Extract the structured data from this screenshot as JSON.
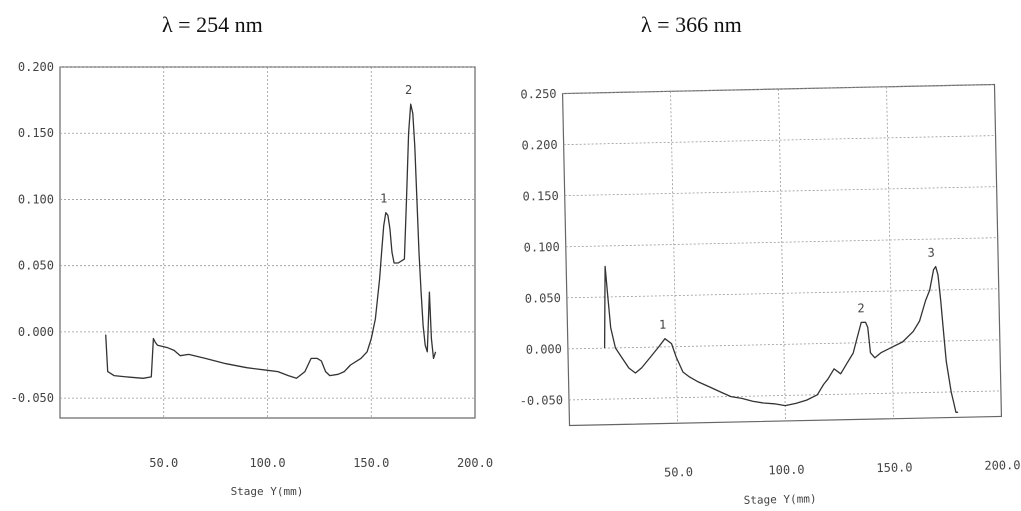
{
  "chart_data": [
    {
      "type": "line",
      "title": "λ = 254 nm",
      "xlabel": "Stage Y(mm)",
      "ylabel": "",
      "xlim": [
        0,
        200
      ],
      "ylim": [
        -0.065,
        0.2
      ],
      "xticks": [
        50,
        100,
        150,
        200
      ],
      "xtick_labels": [
        "50.0",
        "100.0",
        "150.0",
        "200.0"
      ],
      "yticks": [
        0.2,
        0.15,
        0.1,
        0.05,
        0.0,
        -0.05
      ],
      "ytick_labels": [
        "0.200",
        "0.150",
        "0.100",
        "0.050",
        "0.000",
        "-0.050"
      ],
      "grid": true,
      "peaks": [
        {
          "label": "1",
          "x": 157,
          "y": 0.09
        },
        {
          "label": "2",
          "x": 169,
          "y": 0.172
        }
      ],
      "series": [
        {
          "x": [
            22,
            23,
            26,
            32,
            40,
            44,
            45,
            46,
            47,
            52,
            55,
            58,
            62,
            70,
            80,
            90,
            100,
            105,
            110,
            114,
            118,
            121,
            124,
            126,
            128,
            130,
            134,
            137,
            140,
            145,
            148,
            150,
            152,
            154,
            155,
            156,
            157,
            158,
            159,
            160,
            161,
            163,
            166,
            167,
            168,
            169,
            170,
            171,
            172,
            173,
            174,
            175,
            176,
            177,
            178,
            179,
            180,
            181
          ],
          "y": [
            -0.002,
            -0.03,
            -0.033,
            -0.034,
            -0.035,
            -0.034,
            -0.005,
            -0.008,
            -0.01,
            -0.012,
            -0.014,
            -0.018,
            -0.017,
            -0.02,
            -0.024,
            -0.027,
            -0.029,
            -0.03,
            -0.033,
            -0.035,
            -0.03,
            -0.02,
            -0.02,
            -0.022,
            -0.03,
            -0.033,
            -0.032,
            -0.03,
            -0.025,
            -0.02,
            -0.015,
            -0.005,
            0.01,
            0.04,
            0.06,
            0.08,
            0.09,
            0.088,
            0.078,
            0.06,
            0.052,
            0.052,
            0.055,
            0.1,
            0.15,
            0.172,
            0.165,
            0.14,
            0.1,
            0.06,
            0.03,
            0.005,
            -0.01,
            -0.015,
            0.03,
            -0.005,
            -0.02,
            -0.015
          ]
        }
      ]
    },
    {
      "type": "line",
      "title": "λ = 366 nm",
      "xlabel": "Stage Y(mm)",
      "ylabel": "",
      "xlim": [
        0,
        200
      ],
      "ylim": [
        -0.075,
        0.25
      ],
      "xticks": [
        50,
        100,
        150,
        200
      ],
      "xtick_labels": [
        "50.0",
        "100.0",
        "150.0",
        "200.0"
      ],
      "yticks": [
        0.25,
        0.2,
        0.15,
        0.1,
        0.05,
        0.0,
        -0.05
      ],
      "ytick_labels": [
        "0.250",
        "0.200",
        "0.150",
        "0.100",
        "0.050",
        "0.000",
        "-0.050"
      ],
      "grid": true,
      "peaks": [
        {
          "label": "1",
          "x": 45,
          "y": 0.008
        },
        {
          "label": "2",
          "x": 137,
          "y": 0.02
        },
        {
          "label": "3",
          "x": 170,
          "y": 0.073
        }
      ],
      "series": [
        {
          "x": [
            17,
            18,
            19,
            20,
            22,
            25,
            28,
            31,
            34,
            38,
            42,
            45,
            48,
            50,
            53,
            56,
            60,
            65,
            70,
            75,
            80,
            85,
            90,
            95,
            100,
            105,
            110,
            115,
            118,
            120,
            123,
            126,
            129,
            132,
            134,
            136,
            138,
            139,
            140,
            142,
            145,
            150,
            155,
            160,
            163,
            166,
            168,
            170,
            171,
            172,
            173,
            174,
            175,
            177,
            178,
            179,
            180
          ],
          "y": [
            0.0,
            0.08,
            0.05,
            0.02,
            0.0,
            -0.01,
            -0.02,
            -0.025,
            -0.02,
            -0.01,
            0.0,
            0.008,
            0.003,
            -0.01,
            -0.025,
            -0.03,
            -0.035,
            -0.04,
            -0.045,
            -0.05,
            -0.052,
            -0.055,
            -0.057,
            -0.058,
            -0.06,
            -0.058,
            -0.055,
            -0.05,
            -0.04,
            -0.035,
            -0.025,
            -0.03,
            -0.02,
            -0.01,
            0.005,
            0.02,
            0.02,
            0.015,
            -0.01,
            -0.015,
            -0.01,
            -0.005,
            0.0,
            0.01,
            0.02,
            0.04,
            0.05,
            0.07,
            0.073,
            0.065,
            0.04,
            0.01,
            -0.02,
            -0.05,
            -0.06,
            -0.07,
            -0.07
          ]
        }
      ]
    }
  ]
}
